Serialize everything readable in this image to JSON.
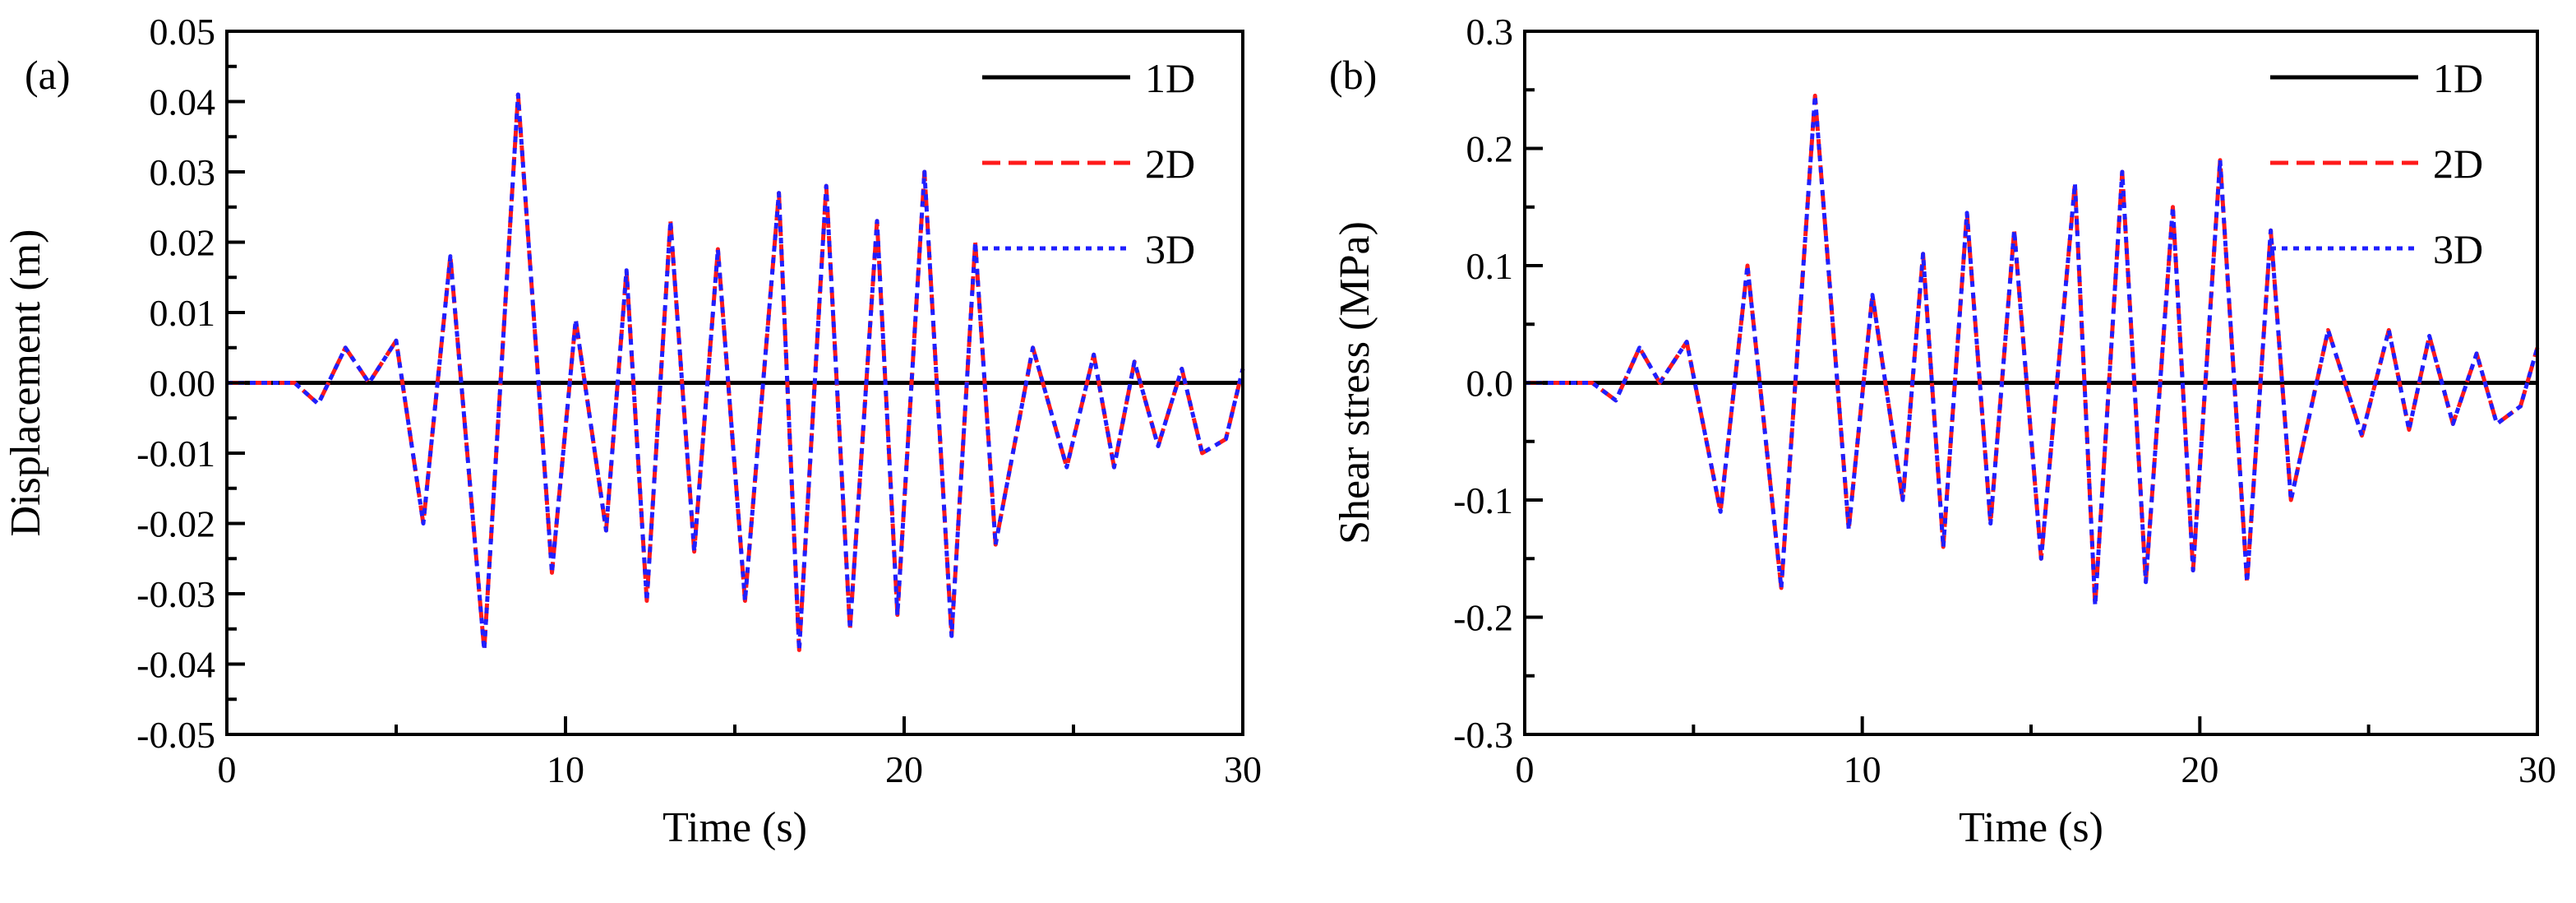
{
  "chart_data": [
    {
      "type": "line",
      "panel_label": "(a)",
      "title": "",
      "xlabel": "Time (s)",
      "ylabel": "Displacement (m)",
      "xlim": [
        0,
        30
      ],
      "ylim": [
        -0.05,
        0.05
      ],
      "x_ticks": [
        0,
        10,
        20,
        30
      ],
      "x_tick_labels": [
        "0",
        "10",
        "20",
        "30"
      ],
      "y_ticks": [
        -0.05,
        -0.04,
        -0.03,
        -0.02,
        -0.01,
        0.0,
        0.01,
        0.02,
        0.03,
        0.04,
        0.05
      ],
      "y_tick_labels": [
        "-0.05",
        "-0.04",
        "-0.03",
        "-0.02",
        "-0.01",
        "0.00",
        "0.01",
        "0.02",
        "0.03",
        "0.04",
        "0.05"
      ],
      "grid": false,
      "legend_position": "top-right",
      "series": [
        {
          "name": "1D",
          "color": "#000000",
          "style": "solid",
          "x": [
            0,
            30
          ],
          "y": [
            0,
            0
          ]
        },
        {
          "name": "2D",
          "color": "#ff1a1a",
          "style": "dashed",
          "x": [
            0,
            1.0,
            2.0,
            2.7,
            3.5,
            4.2,
            5.0,
            5.8,
            6.6,
            7.6,
            8.6,
            9.6,
            10.3,
            11.2,
            11.8,
            12.4,
            13.1,
            13.8,
            14.5,
            15.3,
            16.3,
            16.9,
            17.7,
            18.4,
            19.2,
            19.8,
            20.6,
            21.4,
            22.1,
            22.7,
            23.8,
            24.8,
            25.6,
            26.2,
            26.8,
            27.5,
            28.2,
            28.8,
            29.5,
            30.0
          ],
          "y": [
            0,
            0,
            0,
            -0.003,
            0.005,
            0.0,
            0.006,
            -0.02,
            0.018,
            -0.038,
            0.041,
            -0.027,
            0.009,
            -0.021,
            0.016,
            -0.031,
            0.023,
            -0.024,
            0.019,
            -0.031,
            0.027,
            -0.038,
            0.028,
            -0.035,
            0.023,
            -0.033,
            0.03,
            -0.036,
            0.02,
            -0.023,
            0.005,
            -0.012,
            0.004,
            -0.012,
            0.003,
            -0.009,
            0.002,
            -0.01,
            -0.008,
            0.002
          ]
        },
        {
          "name": "3D",
          "color": "#1f1fff",
          "style": "dotted",
          "x": [
            0,
            1.0,
            2.0,
            2.7,
            3.5,
            4.2,
            5.0,
            5.8,
            6.6,
            7.6,
            8.6,
            9.6,
            10.3,
            11.2,
            11.8,
            12.4,
            13.1,
            13.8,
            14.5,
            15.3,
            16.3,
            16.9,
            17.7,
            18.4,
            19.2,
            19.8,
            20.6,
            21.4,
            22.1,
            22.7,
            23.8,
            24.8,
            25.6,
            26.2,
            26.8,
            27.5,
            28.2,
            28.8,
            29.5,
            30.0
          ],
          "y": [
            0,
            0,
            0,
            -0.003,
            0.005,
            0.0,
            0.006,
            -0.02,
            0.018,
            -0.038,
            0.041,
            -0.027,
            0.009,
            -0.021,
            0.016,
            -0.031,
            0.023,
            -0.024,
            0.019,
            -0.031,
            0.027,
            -0.038,
            0.028,
            -0.035,
            0.023,
            -0.033,
            0.03,
            -0.036,
            0.02,
            -0.023,
            0.005,
            -0.012,
            0.004,
            -0.012,
            0.003,
            -0.009,
            0.002,
            -0.01,
            -0.008,
            0.002
          ]
        }
      ]
    },
    {
      "type": "line",
      "panel_label": "(b)",
      "title": "",
      "xlabel": "Time (s)",
      "ylabel": "Shear stress (MPa)",
      "xlim": [
        0,
        30
      ],
      "ylim": [
        -0.3,
        0.3
      ],
      "x_ticks": [
        0,
        10,
        20,
        30
      ],
      "x_tick_labels": [
        "0",
        "10",
        "20",
        "30"
      ],
      "y_ticks": [
        -0.3,
        -0.2,
        -0.1,
        0.0,
        0.1,
        0.2,
        0.3
      ],
      "y_tick_labels": [
        "-0.3",
        "-0.2",
        "-0.1",
        "0.0",
        "0.1",
        "0.2",
        "0.3"
      ],
      "grid": false,
      "legend_position": "top-right",
      "series": [
        {
          "name": "1D",
          "color": "#000000",
          "style": "solid",
          "x": [
            0,
            30
          ],
          "y": [
            0,
            0
          ]
        },
        {
          "name": "2D",
          "color": "#ff1a1a",
          "style": "dashed",
          "x": [
            0,
            1.0,
            2.0,
            2.7,
            3.4,
            4.0,
            4.8,
            5.8,
            6.6,
            7.6,
            8.6,
            9.6,
            10.3,
            11.2,
            11.8,
            12.4,
            13.1,
            13.8,
            14.5,
            15.3,
            16.3,
            16.9,
            17.7,
            18.4,
            19.2,
            19.8,
            20.6,
            21.4,
            22.1,
            22.7,
            23.8,
            24.8,
            25.6,
            26.2,
            26.8,
            27.5,
            28.2,
            28.8,
            29.5,
            30.0
          ],
          "y": [
            0,
            0,
            0,
            -0.015,
            0.03,
            0.0,
            0.035,
            -0.11,
            0.1,
            -0.175,
            0.245,
            -0.125,
            0.075,
            -0.1,
            0.11,
            -0.14,
            0.145,
            -0.12,
            0.13,
            -0.15,
            0.17,
            -0.19,
            0.18,
            -0.17,
            0.15,
            -0.16,
            0.19,
            -0.17,
            0.13,
            -0.1,
            0.045,
            -0.045,
            0.045,
            -0.04,
            0.04,
            -0.035,
            0.025,
            -0.035,
            -0.02,
            0.03
          ]
        },
        {
          "name": "3D",
          "color": "#1f1fff",
          "style": "dotted",
          "x": [
            0,
            1.0,
            2.0,
            2.7,
            3.4,
            4.0,
            4.8,
            5.8,
            6.6,
            7.6,
            8.6,
            9.6,
            10.3,
            11.2,
            11.8,
            12.4,
            13.1,
            13.8,
            14.5,
            15.3,
            16.3,
            16.9,
            17.7,
            18.4,
            19.2,
            19.8,
            20.6,
            21.4,
            22.1,
            22.7,
            23.8,
            24.8,
            25.6,
            26.2,
            26.8,
            27.5,
            28.2,
            28.8,
            29.5,
            30.0
          ],
          "y": [
            0,
            0,
            0,
            -0.015,
            0.03,
            0.0,
            0.035,
            -0.11,
            0.1,
            -0.175,
            0.245,
            -0.125,
            0.075,
            -0.1,
            0.11,
            -0.14,
            0.145,
            -0.12,
            0.13,
            -0.15,
            0.17,
            -0.19,
            0.18,
            -0.17,
            0.15,
            -0.16,
            0.19,
            -0.17,
            0.13,
            -0.1,
            0.045,
            -0.045,
            0.045,
            -0.04,
            0.04,
            -0.035,
            0.025,
            -0.035,
            -0.02,
            0.03
          ]
        }
      ]
    }
  ]
}
